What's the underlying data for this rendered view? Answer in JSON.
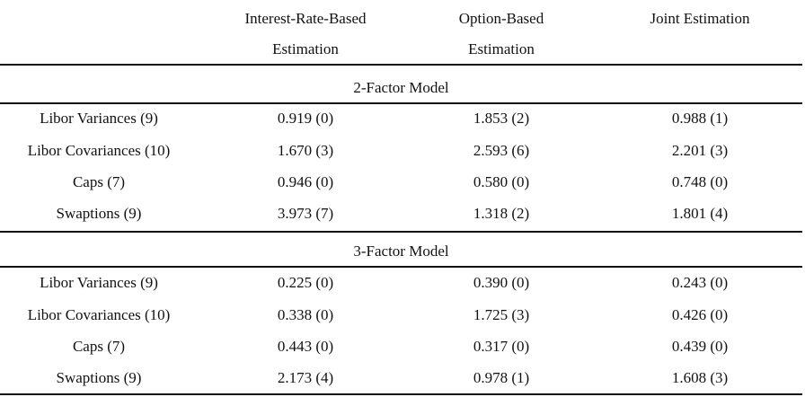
{
  "header": {
    "col1_line1": "Interest-Rate-Based",
    "col1_line2": "Estimation",
    "col2_line1": "Option-Based",
    "col2_line2": "Estimation",
    "col3_line1": "Joint Estimation"
  },
  "sections": [
    {
      "title": "2-Factor Model",
      "rows": [
        {
          "label": "Libor Variances (9)",
          "v1": "0.919 (0)",
          "v2": "1.853 (2)",
          "v3": "0.988 (1)"
        },
        {
          "label": "Libor Covariances (10)",
          "v1": "1.670 (3)",
          "v2": "2.593 (6)",
          "v3": "2.201 (3)"
        },
        {
          "label": "Caps (7)",
          "v1": "0.946 (0)",
          "v2": "0.580 (0)",
          "v3": "0.748 (0)"
        },
        {
          "label": "Swaptions (9)",
          "v1": "3.973 (7)",
          "v2": "1.318 (2)",
          "v3": "1.801 (4)"
        }
      ]
    },
    {
      "title": "3-Factor Model",
      "rows": [
        {
          "label": "Libor Variances (9)",
          "v1": "0.225 (0)",
          "v2": "0.390 (0)",
          "v3": "0.243 (0)"
        },
        {
          "label": "Libor Covariances (10)",
          "v1": "0.338 (0)",
          "v2": "1.725 (3)",
          "v3": "0.426 (0)"
        },
        {
          "label": "Caps (7)",
          "v1": "0.443 (0)",
          "v2": "0.317 (0)",
          "v3": "0.439 (0)"
        },
        {
          "label": "Swaptions (9)",
          "v1": "2.173 (4)",
          "v2": "0.978 (1)",
          "v3": "1.608 (3)"
        }
      ]
    }
  ]
}
